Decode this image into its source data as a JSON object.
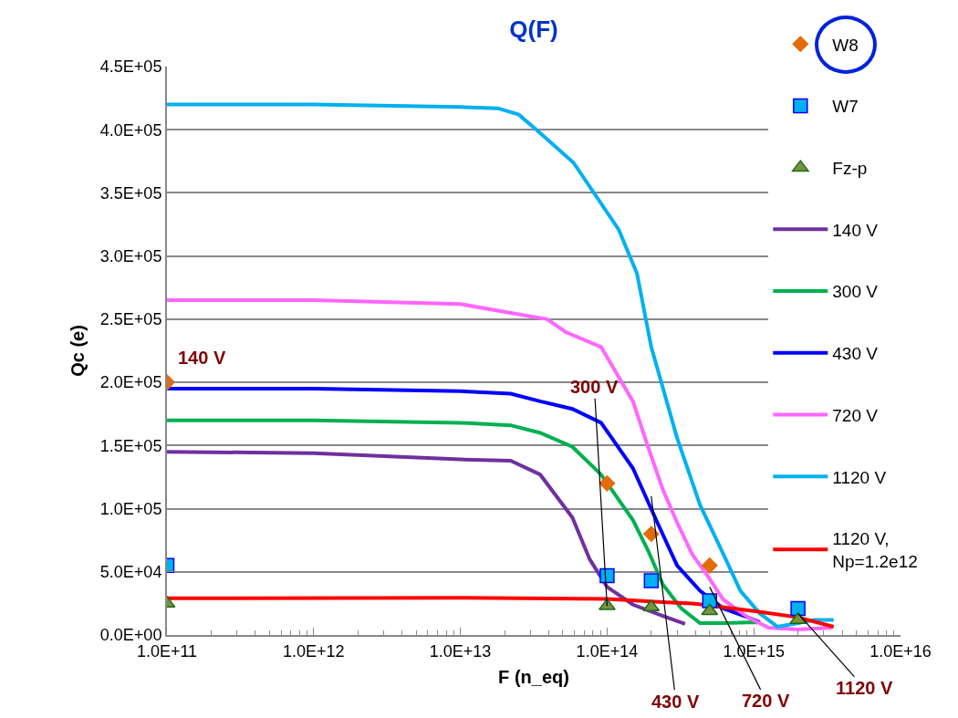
{
  "chart_data": {
    "type": "line",
    "title": "Q(F)",
    "xlabel": "F (n_eq)",
    "ylabel": "Qc (e)",
    "log": "x",
    "grid": "y",
    "legend": "top right",
    "marker": "none",
    "xlim": [
      100000000000.0,
      1e+16
    ],
    "xticks": [
      {
        "value": 100000000000.0,
        "label": "1.0E+11"
      },
      {
        "value": 1000000000000.0,
        "label": "1.0E+12"
      },
      {
        "value": 10000000000000.0,
        "label": "1.0E+13"
      },
      {
        "value": 100000000000000.0,
        "label": "1.0E+14"
      },
      {
        "value": 1000000000000000.0,
        "label": "1.0E+15"
      },
      {
        "value": 1e+16,
        "label": "1.0E+16"
      }
    ],
    "ylim": [
      0,
      450000
    ],
    "yticks": [
      {
        "value": 0,
        "label": "0.0E+00"
      },
      {
        "value": 50000,
        "label": "5.0E+04"
      },
      {
        "value": 100000,
        "label": "1.0E+05"
      },
      {
        "value": 150000,
        "label": "1.5E+05"
      },
      {
        "value": 200000,
        "label": "2.0E+05"
      },
      {
        "value": 250000,
        "label": "2.5E+05"
      },
      {
        "value": 300000,
        "label": "3.0E+05"
      },
      {
        "value": 350000,
        "label": "3.5E+05"
      },
      {
        "value": 400000,
        "label": "4.0E+05"
      },
      {
        "value": 450000,
        "label": "4.5E+05"
      }
    ],
    "series": [
      {
        "name": "W8",
        "type": "scatter",
        "marker": "diamond",
        "color": "#e36c09",
        "x": [
          100000000000.0,
          100000000000000.0,
          200000000000000.0,
          500000000000000.0
        ],
        "values": [
          200000,
          120000,
          80000,
          55000
        ]
      },
      {
        "name": "W7",
        "type": "scatter",
        "marker": "square",
        "color": "#00b0f0",
        "x": [
          100000000000.0,
          100000000000000.0,
          200000000000000.0,
          500000000000000.0,
          2000000000000000.0
        ],
        "values": [
          55000,
          47000,
          43000,
          27000,
          21000
        ]
      },
      {
        "name": "Fz-p",
        "type": "scatter",
        "marker": "triangle",
        "color": "#77933c",
        "x": [
          100000000000.0,
          100000000000000.0,
          200000000000000.0,
          500000000000000.0,
          2000000000000000.0
        ],
        "values": [
          25000,
          23000,
          22000,
          19000,
          12000
        ]
      },
      {
        "name": "140 V",
        "type": "line",
        "color": "#7030a0",
        "x": [
          100000000000.0,
          1000000000000.0,
          10000000000000.0,
          22000000000000.0,
          35000000000000.0,
          58000000000000.0,
          76000000000000.0,
          100000000000000.0,
          150000000000000.0,
          240000000000000.0,
          340000000000000.0
        ],
        "values": [
          145000,
          144000,
          139000,
          138000,
          127000,
          93000,
          60000,
          38000,
          24000,
          15000,
          8700
        ]
      },
      {
        "name": "300 V",
        "type": "line",
        "color": "#00b050",
        "x": [
          100000000000.0,
          1000000000000.0,
          10000000000000.0,
          22000000000000.0,
          35000000000000.0,
          58000000000000.0,
          91000000000000.0,
          150000000000000.0,
          190000000000000.0,
          240000000000000.0,
          320000000000000.0,
          430000000000000.0,
          620000000000000.0,
          910000000000000.0,
          1100000000000000.0
        ],
        "values": [
          170000,
          170000,
          168000,
          166000,
          160000,
          149000,
          127000,
          91000,
          67000,
          40000,
          21000,
          9400,
          9400,
          10000,
          10000
        ]
      },
      {
        "name": "430 V",
        "type": "line",
        "color": "#0000ff",
        "x": [
          100000000000.0,
          1000000000000.0,
          10000000000000.0,
          22000000000000.0,
          35000000000000.0,
          58000000000000.0,
          91000000000000.0,
          150000000000000.0,
          220000000000000.0,
          300000000000000.0,
          430000000000000.0,
          620000000000000.0,
          910000000000000.0,
          1100000000000000.0
        ],
        "values": [
          195000,
          195000,
          193000,
          191000,
          185000,
          179000,
          168000,
          132000,
          89000,
          55000,
          35000,
          21000,
          14000,
          10000
        ]
      },
      {
        "name": "720 V",
        "type": "line",
        "color": "#ff66ff",
        "x": [
          100000000000.0,
          1000000000000.0,
          10000000000000.0,
          22000000000000.0,
          39000000000000.0,
          52000000000000.0,
          91000000000000.0,
          150000000000000.0,
          190000000000000.0,
          240000000000000.0,
          300000000000000.0,
          380000000000000.0,
          490000000000000.0,
          620000000000000.0,
          910000000000000.0,
          1260000000000000.0,
          2000000000000000.0,
          3400000000000000.0
        ],
        "values": [
          265000,
          265000,
          262000,
          255000,
          250000,
          240000,
          228000,
          185000,
          149000,
          115000,
          89000,
          64000,
          46000,
          28000,
          14000,
          5800,
          4300,
          5800
        ]
      },
      {
        "name": "1120 V",
        "type": "line",
        "color": "#00b0f0",
        "x": [
          100000000000.0,
          1000000000000.0,
          10000000000000.0,
          18000000000000.0,
          25000000000000.0,
          33000000000000.0,
          59000000000000.0,
          120000000000000.0,
          160000000000000.0,
          200000000000000.0,
          300000000000000.0,
          430000000000000.0,
          620000000000000.0,
          810000000000000.0,
          1100000000000000.0,
          1450000000000000.0,
          2000000000000000.0,
          2600000000000000.0,
          3500000000000000.0
        ],
        "values": [
          420000,
          420000,
          418000,
          417000,
          412000,
          400000,
          374000,
          321000,
          286000,
          228000,
          156000,
          103000,
          64000,
          35000,
          17000,
          6500,
          9400,
          12000,
          12000
        ]
      },
      {
        "name": "1120 V,\nNp=1.2e12",
        "type": "line",
        "color": "#ff0000",
        "x": [
          100000000000.0,
          10000000000000.0,
          100000000000000.0,
          240000000000000.0,
          380000000000000.0,
          1000000000000000.0,
          2000000000000000.0,
          3500000000000000.0
        ],
        "values": [
          29000,
          29500,
          28500,
          26000,
          25000,
          19000,
          14000,
          6500
        ]
      }
    ],
    "annotations": [
      "140 V",
      {
        "text": "300 V",
        "x": 100000000000000.0,
        "y": 23000
      },
      {
        "text": "430 V",
        "x": 200000000000000.0,
        "y": 110000
      },
      {
        "text": "720 V",
        "x": 500000000000000.0,
        "y": 38000
      },
      {
        "text": "1120 V",
        "x": 2000000000000000.0,
        "y": 17000
      }
    ]
  }
}
